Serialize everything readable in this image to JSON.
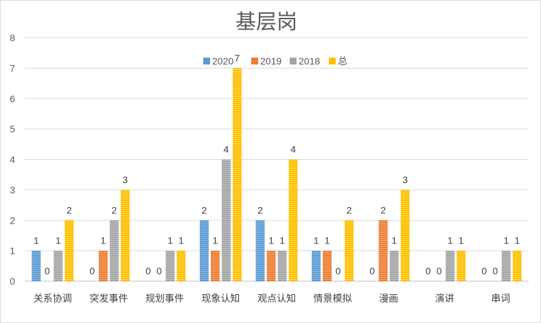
{
  "chart_data": {
    "type": "bar",
    "title": "基层岗",
    "xlabel": "",
    "ylabel": "",
    "ylim": [
      0,
      8
    ],
    "yticks": [
      0,
      1,
      2,
      3,
      4,
      5,
      6,
      7,
      8
    ],
    "grid": true,
    "legend_position": "top",
    "categories": [
      "关系协调",
      "突发事件",
      "规划事件",
      "现象认知",
      "观点认知",
      "情景模拟",
      "漫画",
      "演讲",
      "串词"
    ],
    "series": [
      {
        "name": "2020",
        "color": "#5b9bd5",
        "values": [
          1,
          0,
          0,
          2,
          2,
          1,
          0,
          0,
          0
        ]
      },
      {
        "name": "2019",
        "color": "#ed7d31",
        "values": [
          0,
          1,
          0,
          1,
          1,
          1,
          2,
          0,
          0
        ]
      },
      {
        "name": "2018",
        "color": "#a5a5a5",
        "values": [
          1,
          2,
          1,
          4,
          1,
          0,
          1,
          1,
          1
        ]
      },
      {
        "name": "总",
        "color": "#ffc000",
        "values": [
          2,
          3,
          1,
          7,
          4,
          2,
          3,
          1,
          1
        ]
      }
    ]
  }
}
